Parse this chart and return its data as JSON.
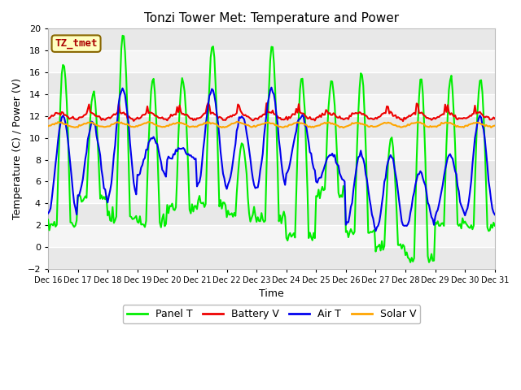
{
  "title": "Tonzi Tower Met: Temperature and Power",
  "xlabel": "Time",
  "ylabel": "Temperature (C) / Power (V)",
  "ylim": [
    -2,
    20
  ],
  "yticks": [
    -2,
    0,
    2,
    4,
    6,
    8,
    10,
    12,
    14,
    16,
    18,
    20
  ],
  "xlim": [
    0,
    360
  ],
  "xtick_labels": [
    "Dec 16",
    "Dec 17",
    "Dec 18",
    "Dec 19",
    "Dec 20",
    "Dec 21",
    "Dec 22",
    "Dec 23",
    "Dec 24",
    "Dec 25",
    "Dec 26",
    "Dec 27",
    "Dec 28",
    "Dec 29",
    "Dec 30",
    "Dec 31"
  ],
  "xtick_positions": [
    0,
    24,
    48,
    72,
    96,
    120,
    144,
    168,
    192,
    216,
    240,
    264,
    288,
    312,
    336,
    360
  ],
  "legend_labels": [
    "Panel T",
    "Battery V",
    "Air T",
    "Solar V"
  ],
  "legend_colors": [
    "#00EE00",
    "#EE0000",
    "#0000EE",
    "#FFA500"
  ],
  "watermark_text": "TZ_tmet",
  "bg_color": "#FFFFFF",
  "plot_bg_color": "#F0F0F0",
  "grid_color": "#FFFFFF",
  "line_width": 1.5,
  "title_fontsize": 11,
  "axis_fontsize": 9,
  "tick_fontsize": 8,
  "legend_fontsize": 9
}
